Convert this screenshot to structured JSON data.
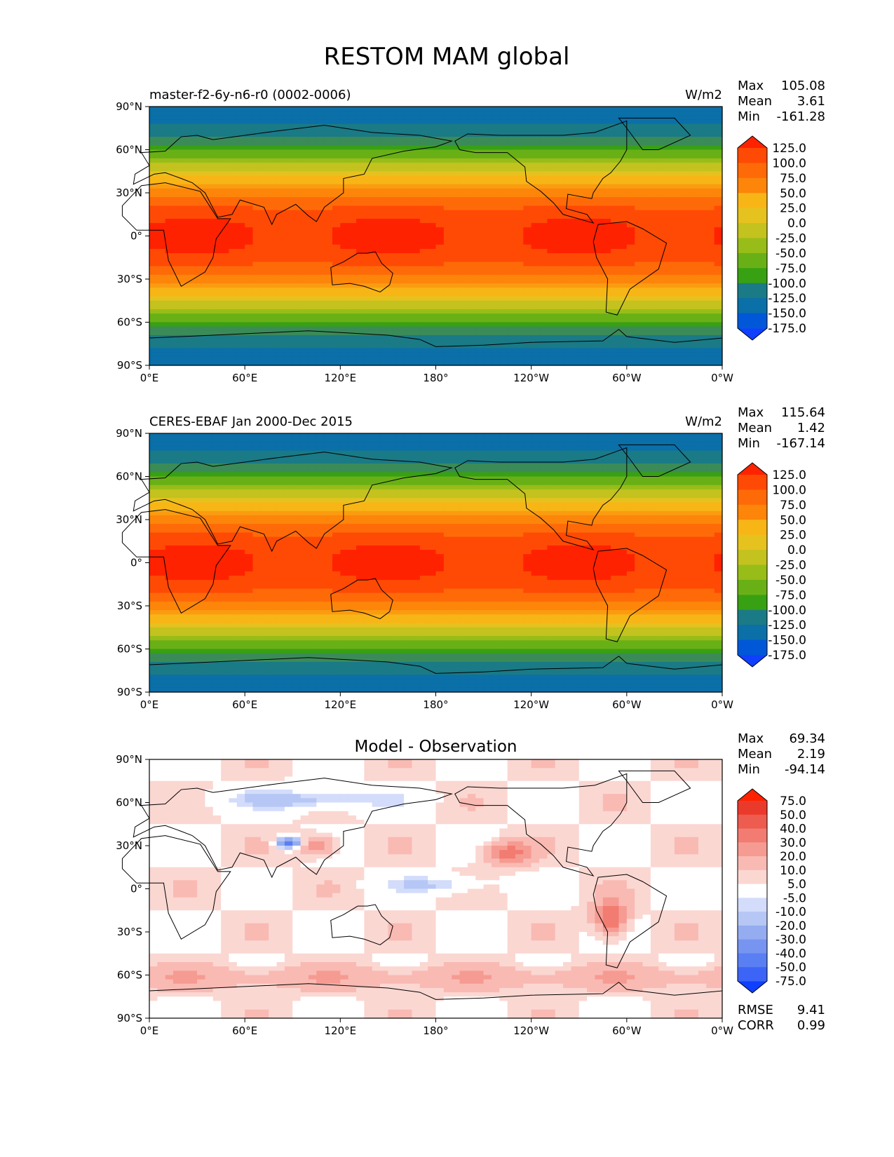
{
  "title": "RESTOM MAM global",
  "x_ticks": [
    "0°E",
    "60°E",
    "120°E",
    "180°",
    "120°W",
    "60°W",
    "0°W"
  ],
  "y_ticks": [
    "90°N",
    "60°N",
    "30°N",
    "0°",
    "30°S",
    "60°S",
    "90°S"
  ],
  "colors": {
    "field": [
      "#0f3fff",
      "#0058d8",
      "#0b6fa8",
      "#1a7a86",
      "#3b8b58",
      "#38a013",
      "#69b017",
      "#98bd18",
      "#c3c21f",
      "#e6c21f",
      "#f8b516",
      "#fb9c10",
      "#fc850a",
      "#ff6a08",
      "#ff4a05",
      "#ff2200"
    ],
    "diff": [
      "#0f3fff",
      "#3c64f6",
      "#5a7ff3",
      "#7795f0",
      "#95acf0",
      "#b6c7f5",
      "#d3dcfa",
      "#ffffff",
      "#ffffff",
      "#fbd7d2",
      "#f9bab3",
      "#f69b92",
      "#f27c71",
      "#ee5b4f",
      "#ea3a2c",
      "#ff2200"
    ]
  },
  "chart_data": [
    {
      "type": "heatmap",
      "title": "",
      "left_label": "master-f2-6y-n6-r0 (0002-0006)",
      "units": "W/m2",
      "stats": {
        "max_label": "Max",
        "max": "105.08",
        "mean_label": "Mean",
        "mean": "3.61",
        "min_label": "Min",
        "min": "-161.28"
      },
      "colorbar_labels": [
        "125.0",
        "100.0",
        "75.0",
        "50.0",
        "25.0",
        "0.0",
        "-25.0",
        "-50.0",
        "-75.0",
        "-100.0",
        "-125.0",
        "-150.0",
        "-175.0"
      ],
      "footer": [],
      "xlim": [
        0,
        360
      ],
      "ylim": [
        -90,
        90
      ],
      "kind": "field"
    },
    {
      "type": "heatmap",
      "title": "",
      "left_label": "CERES-EBAF Jan 2000-Dec 2015",
      "units": "W/m2",
      "stats": {
        "max_label": "Max",
        "max": "115.64",
        "mean_label": "Mean",
        "mean": "1.42",
        "min_label": "Min",
        "min": "-167.14"
      },
      "colorbar_labels": [
        "125.0",
        "100.0",
        "75.0",
        "50.0",
        "25.0",
        "0.0",
        "-25.0",
        "-50.0",
        "-75.0",
        "-100.0",
        "-125.0",
        "-150.0",
        "-175.0"
      ],
      "footer": [],
      "xlim": [
        0,
        360
      ],
      "ylim": [
        -90,
        90
      ],
      "kind": "field"
    },
    {
      "type": "heatmap",
      "title": "Model - Observation",
      "left_label": "",
      "units": "",
      "stats": {
        "max_label": "Max",
        "max": "69.34",
        "mean_label": "Mean",
        "mean": "2.19",
        "min_label": "Min",
        "min": "-94.14"
      },
      "colorbar_labels": [
        "75.0",
        "50.0",
        "40.0",
        "30.0",
        "20.0",
        "10.0",
        "5.0",
        "-5.0",
        "-10.0",
        "-20.0",
        "-30.0",
        "-40.0",
        "-50.0",
        "-75.0"
      ],
      "footer": [
        {
          "label": "RMSE",
          "value": "9.41"
        },
        {
          "label": "CORR",
          "value": "0.99"
        }
      ],
      "xlim": [
        0,
        360
      ],
      "ylim": [
        -90,
        90
      ],
      "kind": "diff"
    }
  ]
}
